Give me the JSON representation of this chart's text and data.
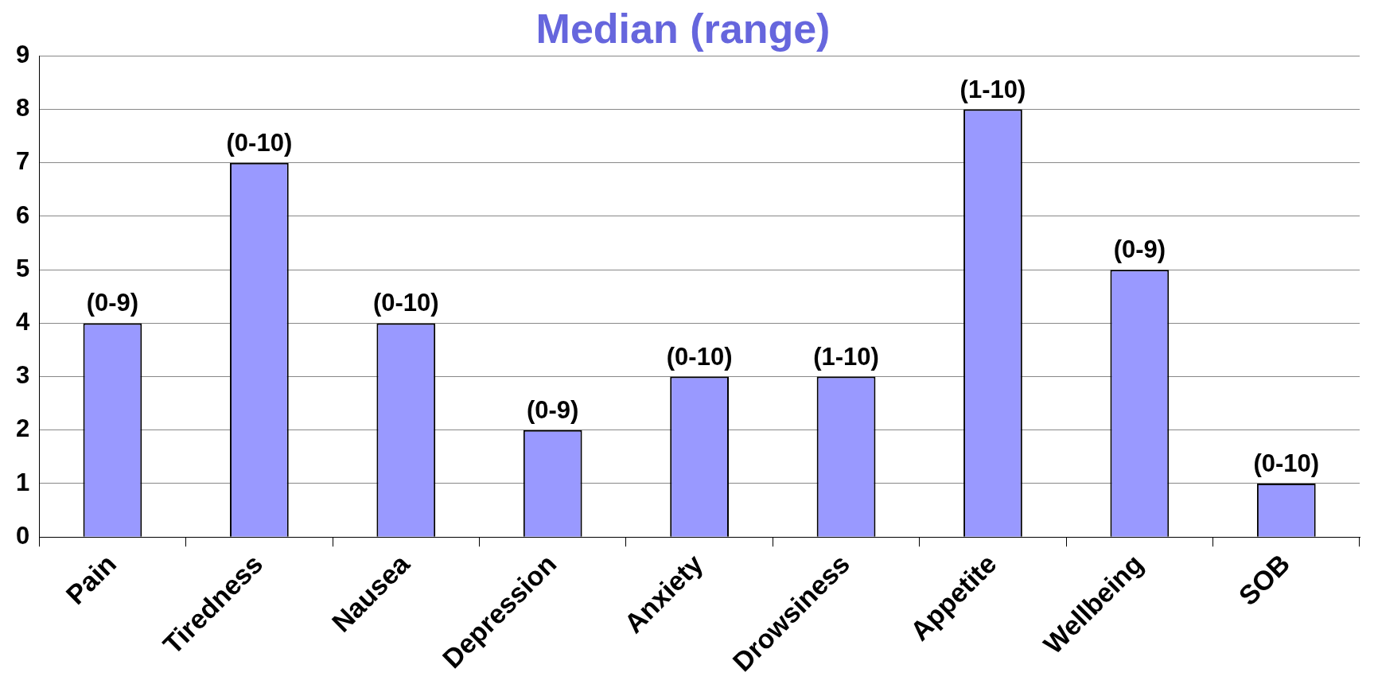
{
  "chart_data": {
    "type": "bar",
    "title": "Median (range)",
    "categories": [
      "Pain",
      "Tiredness",
      "Nausea",
      "Depression",
      "Anxiety",
      "Drowsiness",
      "Appetite",
      "Wellbeing",
      "SOB"
    ],
    "values": [
      4,
      7,
      4,
      2,
      3,
      3,
      8,
      5,
      1
    ],
    "value_labels": [
      "(0-9)",
      "(0-10)",
      "(0-10)",
      "(0-9)",
      "(0-10)",
      "(1-10)",
      "(1-10)",
      "(0-9)",
      "(0-10)"
    ],
    "color": "#9999ff",
    "ylim": [
      0,
      9
    ],
    "yticks": [
      0,
      1,
      2,
      3,
      4,
      5,
      6,
      7,
      8,
      9
    ],
    "grid": "y",
    "legend": false
  }
}
